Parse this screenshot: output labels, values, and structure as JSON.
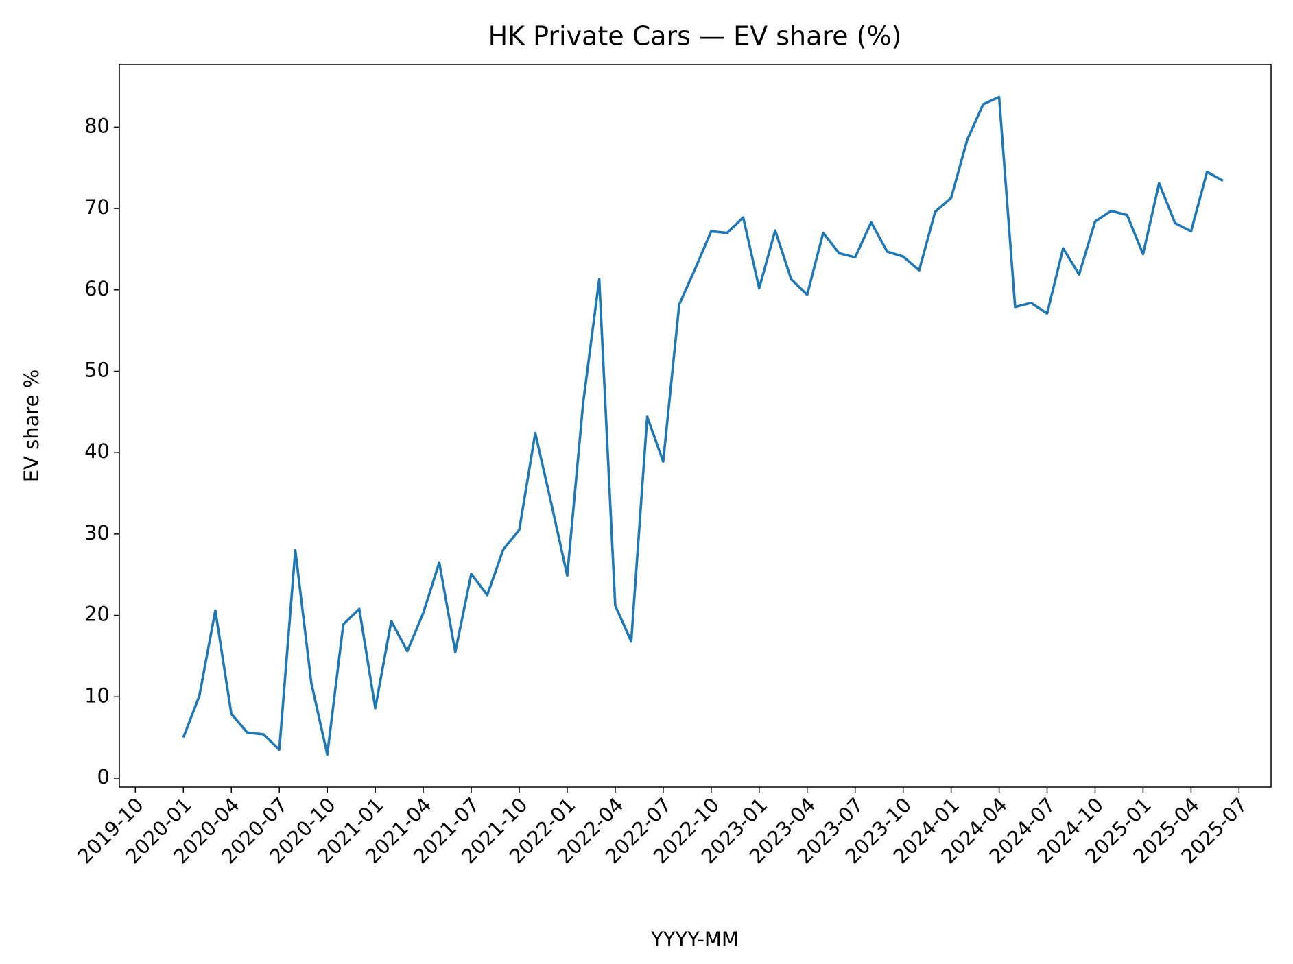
{
  "chart_data": {
    "type": "line",
    "title": "HK Private Cars — EV share (%)",
    "xlabel": "YYYY-MM",
    "ylabel": "EV share %",
    "x": [
      "2020-01",
      "2020-02",
      "2020-03",
      "2020-04",
      "2020-05",
      "2020-06",
      "2020-07",
      "2020-08",
      "2020-09",
      "2020-10",
      "2020-11",
      "2020-12",
      "2021-01",
      "2021-02",
      "2021-03",
      "2021-04",
      "2021-05",
      "2021-06",
      "2021-07",
      "2021-08",
      "2021-09",
      "2021-10",
      "2021-11",
      "2021-12",
      "2022-01",
      "2022-02",
      "2022-03",
      "2022-04",
      "2022-05",
      "2022-06",
      "2022-07",
      "2022-08",
      "2022-09",
      "2022-10",
      "2022-11",
      "2022-12",
      "2023-01",
      "2023-02",
      "2023-03",
      "2023-04",
      "2023-05",
      "2023-06",
      "2023-07",
      "2023-08",
      "2023-09",
      "2023-10",
      "2023-11",
      "2023-12",
      "2024-01",
      "2024-02",
      "2024-03",
      "2024-04",
      "2024-05",
      "2024-06",
      "2024-07",
      "2024-08",
      "2024-09",
      "2024-10",
      "2024-11",
      "2024-12",
      "2025-01",
      "2025-02",
      "2025-03",
      "2025-04",
      "2025-05",
      "2025-06"
    ],
    "series": [
      {
        "name": "EV share",
        "color": "#1f77b4",
        "values": [
          5.0,
          10.1,
          20.6,
          7.9,
          5.6,
          5.4,
          3.5,
          28.0,
          11.7,
          2.9,
          18.9,
          20.8,
          8.6,
          19.3,
          15.6,
          20.3,
          26.5,
          15.5,
          25.1,
          22.5,
          28.1,
          30.5,
          42.4,
          33.8,
          24.9,
          46.2,
          61.3,
          21.2,
          16.8,
          44.4,
          38.9,
          58.2,
          62.6,
          67.2,
          67.0,
          68.9,
          60.2,
          67.3,
          61.3,
          59.4,
          67.0,
          64.5,
          64.0,
          68.3,
          64.7,
          64.1,
          62.4,
          69.6,
          71.3,
          78.4,
          82.8,
          83.7,
          57.9,
          58.4,
          57.1,
          65.1,
          61.9,
          68.4,
          69.7,
          69.2,
          64.4,
          73.1,
          68.2,
          67.2,
          74.5,
          73.4
        ]
      }
    ],
    "xlim": [
      "2019-09",
      "2025-09"
    ],
    "xticks": [
      "2019-10",
      "2020-01",
      "2020-04",
      "2020-07",
      "2020-10",
      "2021-01",
      "2021-04",
      "2021-07",
      "2021-10",
      "2022-01",
      "2022-04",
      "2022-07",
      "2022-10",
      "2023-01",
      "2023-04",
      "2023-07",
      "2023-10",
      "2024-01",
      "2024-04",
      "2024-07",
      "2024-10",
      "2025-01",
      "2025-04",
      "2025-07"
    ],
    "ylim": [
      -1.1,
      87.7
    ],
    "yticks": [
      0,
      10,
      20,
      30,
      40,
      50,
      60,
      70,
      80
    ],
    "grid": false
  }
}
